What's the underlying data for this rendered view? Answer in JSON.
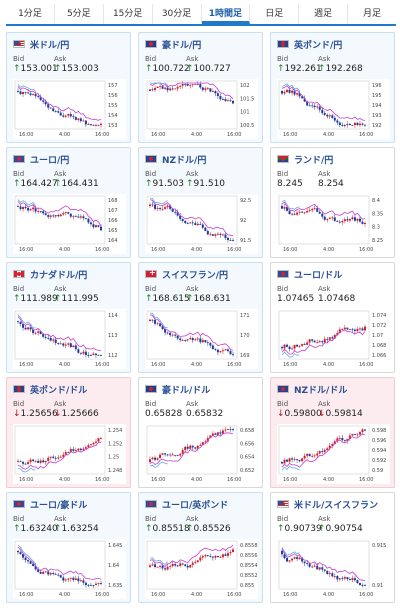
{
  "tabs": [
    {
      "label": "1分足",
      "active": false
    },
    {
      "label": "5分足",
      "active": false
    },
    {
      "label": "15分足",
      "active": false
    },
    {
      "label": "30分足",
      "active": false
    },
    {
      "label": "1時間足",
      "active": true
    },
    {
      "label": "日足",
      "active": false
    },
    {
      "label": "週足",
      "active": false
    },
    {
      "label": "月足",
      "active": false
    }
  ],
  "labels": {
    "bid": "Bid",
    "ask": "Ask"
  },
  "colors": {
    "up": "#2a7a2a",
    "down": "#b3131b",
    "accent": "#1f78c8"
  },
  "cards": [
    {
      "title": "米ドル/円",
      "flag": "us",
      "bid_dir": "up",
      "bid": "153.001",
      "ask_dir": "up",
      "ask": "153.003",
      "style": "alt",
      "y_ticks": [
        "157",
        "156",
        "155",
        "154",
        "153"
      ],
      "x_ticks": [
        "16:00",
        "4:00",
        "16:00"
      ],
      "trend": "down"
    },
    {
      "title": "豪ドル/円",
      "flag": "au",
      "bid_dir": "up",
      "bid": "100.722",
      "ask_dir": "up",
      "ask": "100.727",
      "style": "alt",
      "y_ticks": [
        "102",
        "101.5",
        "101",
        "100.5"
      ],
      "x_ticks": [
        "16:00",
        "4:00",
        "16:00"
      ],
      "trend": "down"
    },
    {
      "title": "英ポンド/円",
      "flag": "gb",
      "bid_dir": "up",
      "bid": "192.261",
      "ask_dir": "up",
      "ask": "192.268",
      "style": "alt",
      "y_ticks": [
        "196",
        "195",
        "194",
        "193",
        "192"
      ],
      "x_ticks": [
        "16:00",
        "4:00",
        "16:00"
      ],
      "trend": "down"
    },
    {
      "title": "ユーロ/円",
      "flag": "eu",
      "bid_dir": "up",
      "bid": "164.427",
      "ask_dir": "up",
      "ask": "164.431",
      "style": "alt",
      "y_ticks": [
        "168",
        "167",
        "166",
        "165",
        "164"
      ],
      "x_ticks": [
        "16:00",
        "4:00",
        "16:00"
      ],
      "trend": "down"
    },
    {
      "title": "NZドル/円",
      "flag": "nz",
      "bid_dir": "up",
      "bid": "91.503",
      "ask_dir": "up",
      "ask": "91.510",
      "style": "alt",
      "y_ticks": [
        "92.5",
        "92",
        "91.5"
      ],
      "x_ticks": [
        "16:00",
        "4:00",
        "16:00"
      ],
      "trend": "down"
    },
    {
      "title": "ランド/円",
      "flag": "za",
      "bid_dir": "none",
      "bid": "8.245",
      "ask_dir": "none",
      "ask": "8.254",
      "style": "white",
      "y_ticks": [
        "8.4",
        "8.35",
        "8.3",
        "8.25"
      ],
      "x_ticks": [
        "16:00",
        "4:00",
        "16:00"
      ],
      "trend": "down"
    },
    {
      "title": "カナダドル/円",
      "flag": "ca",
      "bid_dir": "up",
      "bid": "111.989",
      "ask_dir": "up",
      "ask": "111.995",
      "style": "alt",
      "y_ticks": [
        "114",
        "113",
        "112"
      ],
      "x_ticks": [
        "16:00",
        "4:00",
        "16:00"
      ],
      "trend": "down"
    },
    {
      "title": "スイスフラン/円",
      "flag": "ch",
      "bid_dir": "up",
      "bid": "168.615",
      "ask_dir": "up",
      "ask": "168.631",
      "style": "alt",
      "y_ticks": [
        "171",
        "170",
        "169"
      ],
      "x_ticks": [
        "16:00",
        "4:00",
        "16:00"
      ],
      "trend": "down"
    },
    {
      "title": "ユーロ/ドル",
      "flag": "eu",
      "bid_dir": "none",
      "bid": "1.07465",
      "ask_dir": "none",
      "ask": "1.07468",
      "style": "white",
      "y_ticks": [
        "1.074",
        "1.072",
        "1.07",
        "1.068",
        "1.066"
      ],
      "x_ticks": [
        "16:00",
        "4:00",
        "16:00"
      ],
      "trend": "up"
    },
    {
      "title": "英ポンド/ドル",
      "flag": "gb",
      "bid_dir": "down",
      "bid": "1.25656",
      "ask_dir": "down",
      "ask": "1.25666",
      "style": "down",
      "y_ticks": [
        "1.254",
        "1.252",
        "1.25",
        "1.248"
      ],
      "x_ticks": [
        "16:00",
        "4:00",
        "16:00"
      ],
      "trend": "up"
    },
    {
      "title": "豪ドル/ドル",
      "flag": "au",
      "bid_dir": "none",
      "bid": "0.65828",
      "ask_dir": "none",
      "ask": "0.65832",
      "style": "white",
      "y_ticks": [
        "0.658",
        "0.656",
        "0.654",
        "0.652"
      ],
      "x_ticks": [
        "16:00",
        "4:00",
        "16:00"
      ],
      "trend": "up"
    },
    {
      "title": "NZドル/ドル",
      "flag": "nz",
      "bid_dir": "down",
      "bid": "0.59800",
      "ask_dir": "down",
      "ask": "0.59814",
      "style": "down",
      "y_ticks": [
        "0.598",
        "0.596",
        "0.594",
        "0.592",
        "0.59"
      ],
      "x_ticks": [
        "16:00",
        "4:00",
        "16:00"
      ],
      "trend": "up"
    },
    {
      "title": "ユーロ/豪ドル",
      "flag": "eu",
      "bid_dir": "up",
      "bid": "1.63240",
      "ask_dir": "up",
      "ask": "1.63254",
      "style": "alt",
      "y_ticks": [
        "1.645",
        "1.64",
        "1.635"
      ],
      "x_ticks": [
        "16:00",
        "4:00",
        "16:00"
      ],
      "trend": "down"
    },
    {
      "title": "ユーロ/英ポンド",
      "flag": "eu",
      "bid_dir": "up",
      "bid": "0.85518",
      "ask_dir": "up",
      "ask": "0.85526",
      "style": "alt",
      "y_ticks": [
        "0.8558",
        "0.8556",
        "0.8554",
        "0.8552",
        "0.855"
      ],
      "x_ticks": [
        "16:00",
        "4:00",
        "16:00"
      ],
      "trend": "flat"
    },
    {
      "title": "米ドル/スイスフラン",
      "flag": "us",
      "bid_dir": "up",
      "bid": "0.90739",
      "ask_dir": "up",
      "ask": "0.90754",
      "style": "white",
      "y_ticks": [
        "0.915",
        "0.91"
      ],
      "x_ticks": [
        "16:00",
        "4:00",
        "16:00"
      ],
      "trend": "down"
    }
  ]
}
